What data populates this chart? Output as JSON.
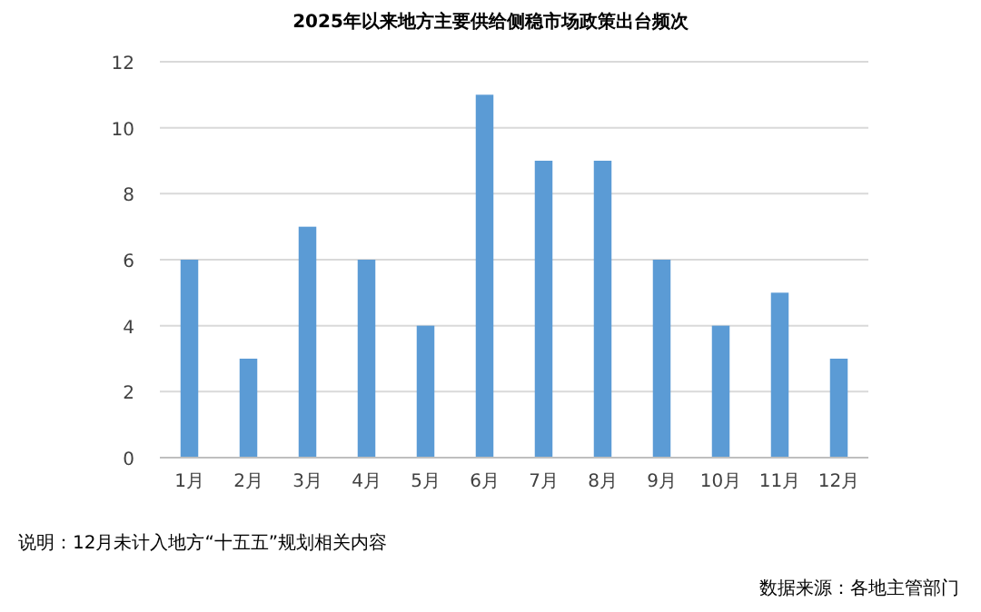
{
  "chart_data": {
    "type": "bar",
    "title": "2025年以来地方主要供给侧稳市场政策出台频次",
    "categories": [
      "1月",
      "2月",
      "3月",
      "4月",
      "5月",
      "6月",
      "7月",
      "8月",
      "9月",
      "10月",
      "11月",
      "12月"
    ],
    "values": [
      6,
      3,
      7,
      6,
      4,
      11,
      9,
      9,
      6,
      4,
      5,
      3
    ],
    "color": "#5b9bd5",
    "ylim": [
      0,
      12
    ],
    "yticks": [
      0,
      2,
      4,
      6,
      8,
      10,
      12
    ],
    "grid": "y",
    "annotations": [
      "说明：12月未计入地方“十五五”规划相关内容",
      "数据来源：各地主管部门"
    ]
  }
}
